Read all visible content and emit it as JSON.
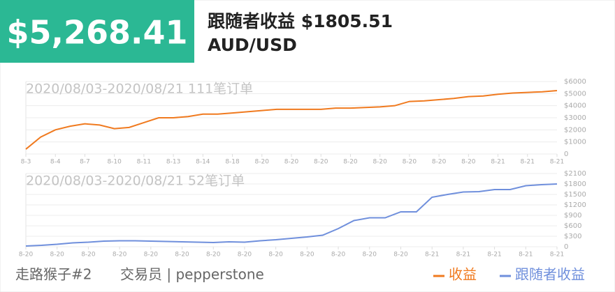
{
  "header": {
    "amount": "$5,268.41",
    "label": "跟随者收益 $1805.51",
    "pair": "AUD/USD"
  },
  "chart_data": [
    {
      "type": "line",
      "title": "2020/08/03-2020/08/21 111笔订单",
      "categories": [
        "8-3",
        null,
        "8-4",
        null,
        "8-7",
        null,
        "8-10",
        null,
        "8-11",
        null,
        "8-13",
        null,
        "8-14",
        null,
        "8-18",
        null,
        "8-20",
        null,
        "8-20",
        null,
        "8-20",
        null,
        "8-20",
        null,
        "8-20",
        null,
        "8-20",
        null,
        "8-20",
        null,
        "8-20",
        null,
        "8-21",
        null,
        "8-21",
        null,
        "8-21"
      ],
      "series": [
        {
          "name": "收益",
          "color": "#f07a1f",
          "values": [
            400,
            1400,
            2000,
            2300,
            2500,
            2400,
            2100,
            2200,
            2600,
            3000,
            3000,
            3100,
            3300,
            3300,
            3400,
            3500,
            3600,
            3700,
            3700,
            3700,
            3700,
            3800,
            3800,
            3850,
            3900,
            4000,
            4350,
            4400,
            4500,
            4600,
            4750,
            4800,
            4950,
            5050,
            5100,
            5150,
            5250
          ]
        }
      ],
      "ylim": [
        0,
        6000
      ],
      "yticks": [
        0,
        {
          "value": 1000,
          "label": "$1000"
        },
        {
          "value": 2000,
          "label": "$2000"
        },
        {
          "value": 3000,
          "label": "$3000"
        },
        {
          "value": 4000,
          "label": "$4000"
        },
        {
          "value": 5000,
          "label": "$5000"
        },
        {
          "value": 6000,
          "label": "$6000"
        }
      ],
      "grid": true
    },
    {
      "type": "line",
      "title": "2020/08/03-2020/08/21 52笔订单",
      "categories": [
        "8-20",
        null,
        "8-20",
        null,
        "8-20",
        null,
        "8-20",
        null,
        "8-20",
        null,
        "8-20",
        null,
        "8-20",
        null,
        "8-20",
        null,
        "8-20",
        null,
        "8-20",
        null,
        "8-20",
        null,
        "8-20",
        null,
        "8-20",
        null,
        "8-21",
        null,
        "8-21",
        null,
        "8-21",
        null,
        "8-21",
        null,
        "8-21"
      ],
      "series": [
        {
          "name": "跟随者收益",
          "color": "#6f8fdc",
          "values": [
            20,
            40,
            70,
            110,
            130,
            160,
            170,
            170,
            160,
            150,
            140,
            130,
            120,
            140,
            130,
            170,
            200,
            240,
            280,
            330,
            520,
            750,
            830,
            830,
            1000,
            1000,
            1420,
            1500,
            1570,
            1580,
            1640,
            1640,
            1750,
            1780,
            1800
          ]
        }
      ],
      "ylim": [
        0,
        2100
      ],
      "yticks": [
        0,
        {
          "value": 300,
          "label": "$300"
        },
        {
          "value": 600,
          "label": "$600"
        },
        {
          "value": 900,
          "label": "$900"
        },
        {
          "value": 1200,
          "label": "$1200"
        },
        {
          "value": 1500,
          "label": "$1500"
        },
        {
          "value": 1800,
          "label": "$1800"
        },
        {
          "value": 2100,
          "label": "$2100"
        }
      ],
      "grid": true
    }
  ],
  "footer": {
    "trader": "走路猴子#2",
    "role": "交易员 | pepperstone"
  }
}
